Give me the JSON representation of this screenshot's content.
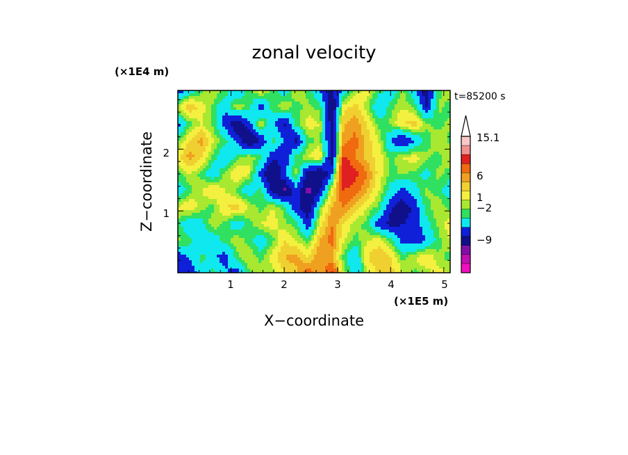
{
  "chart_data": {
    "type": "heatmap",
    "title": "zonal velocity",
    "xlabel": "X−coordinate",
    "ylabel": "Z−coordinate",
    "x_unit": "(×1E5 m)",
    "y_unit": "(×1E4 m)",
    "time_label": "t=85200 s",
    "xlim": [
      0,
      5.12
    ],
    "ylim": [
      0,
      2.95
    ],
    "x_ticks": [
      "1",
      "2",
      "3",
      "4",
      "5"
    ],
    "y_ticks": [
      "1",
      "2"
    ],
    "colorbar": {
      "labels": [
        "15.1",
        "6",
        "1",
        "−2",
        "−9"
      ],
      "levels": [
        {
          "color": "#f8c8c8"
        },
        {
          "color": "#f09090"
        },
        {
          "color": "#e02020"
        },
        {
          "color": "#f06a10"
        },
        {
          "color": "#f0a020"
        },
        {
          "color": "#f0d030"
        },
        {
          "color": "#f4f040"
        },
        {
          "color": "#a8e830"
        },
        {
          "color": "#30e060"
        },
        {
          "color": "#10e8f0"
        },
        {
          "color": "#1020d8"
        },
        {
          "color": "#10108a"
        },
        {
          "color": "#8010a8"
        },
        {
          "color": "#c010b0"
        },
        {
          "color": "#f010c0"
        }
      ],
      "top_triangle_color": "#ffffff"
    },
    "field_values": [
      [
        -2.5,
        -1.0,
        0.5,
        1.5,
        0.5,
        -1.5,
        0.5,
        2.0,
        0.5,
        -1.0,
        1.5,
        0.5,
        -1.5,
        -3.5,
        -1.0,
        1.0,
        2.0,
        0.5,
        -1.0,
        1.0,
        -1.0,
        -4.0,
        0.5,
        1.5
      ],
      [
        1.5,
        3.5,
        2.0,
        0.5,
        -1.0,
        1.5,
        0.5,
        -2.5,
        0.5,
        1.5,
        0.5,
        1.0,
        0.5,
        -5.0,
        2.0,
        3.0,
        1.0,
        -1.5,
        0.5,
        1.5,
        0.5,
        -3.0,
        1.0,
        0.5
      ],
      [
        -2.0,
        0.5,
        1.5,
        0.5,
        -2.5,
        -4.5,
        -2.0,
        1.5,
        -1.0,
        -3.5,
        0.5,
        2.0,
        1.5,
        -4.0,
        3.5,
        4.0,
        2.5,
        0.5,
        1.0,
        2.5,
        3.0,
        1.0,
        0.5,
        1.0
      ],
      [
        0.5,
        2.5,
        4.0,
        1.5,
        0.5,
        -2.0,
        -5.0,
        -3.0,
        0.5,
        -1.5,
        -3.5,
        0.5,
        1.0,
        -3.5,
        4.0,
        5.0,
        3.0,
        1.5,
        -1.5,
        -3.5,
        -1.5,
        0.5,
        1.5,
        0.5
      ],
      [
        2.0,
        4.0,
        2.5,
        0.5,
        -1.5,
        0.5,
        1.5,
        0.5,
        -2.5,
        -3.0,
        0.5,
        1.5,
        2.5,
        -4.5,
        6.5,
        4.5,
        3.0,
        2.0,
        0.5,
        1.5,
        2.0,
        1.0,
        0.5,
        1.5
      ],
      [
        0.5,
        1.5,
        0.5,
        -1.0,
        1.0,
        2.5,
        1.5,
        -2.0,
        -5.5,
        -1.5,
        1.0,
        -4.0,
        -5.0,
        -2.0,
        8.0,
        6.5,
        4.5,
        2.0,
        0.5,
        1.0,
        0.5,
        -0.5,
        1.0,
        0.5
      ],
      [
        -1.0,
        0.5,
        1.5,
        2.5,
        1.5,
        0.5,
        -1.0,
        0.5,
        -3.5,
        -5.5,
        -2.0,
        -5.5,
        -3.0,
        2.0,
        6.0,
        5.0,
        3.5,
        1.5,
        -0.5,
        -2.0,
        -0.5,
        1.0,
        0.5,
        -1.0
      ],
      [
        1.5,
        2.5,
        1.0,
        0.5,
        2.5,
        3.0,
        1.5,
        0.5,
        1.5,
        0.5,
        -2.5,
        -4.5,
        0.5,
        3.5,
        4.5,
        3.0,
        1.5,
        0.5,
        -3.0,
        -4.0,
        -2.5,
        0.5,
        1.5,
        0.5
      ],
      [
        0.5,
        -1.5,
        -0.5,
        1.5,
        0.5,
        -1.0,
        0.5,
        1.5,
        2.0,
        1.0,
        0.5,
        -2.5,
        2.0,
        4.5,
        2.5,
        1.0,
        0.5,
        -2.5,
        -3.5,
        -3.0,
        -2.5,
        -0.5,
        1.0,
        2.0
      ],
      [
        1.0,
        0.5,
        -1.5,
        -1.0,
        0.5,
        1.5,
        0.5,
        -1.0,
        0.5,
        2.5,
        1.5,
        0.5,
        3.5,
        5.0,
        1.5,
        0.5,
        1.5,
        2.0,
        0.5,
        -2.0,
        -2.5,
        -1.5,
        0.5,
        1.5
      ],
      [
        -2.5,
        -1.5,
        0.5,
        -1.0,
        -2.5,
        0.5,
        1.5,
        0.5,
        2.0,
        3.5,
        4.0,
        2.5,
        4.5,
        3.5,
        0.5,
        -1.5,
        2.5,
        3.5,
        2.5,
        0.5,
        1.5,
        2.5,
        1.0,
        0.5
      ],
      [
        -3.0,
        -2.5,
        -1.0,
        0.5,
        -1.0,
        -2.5,
        0.5,
        1.5,
        1.0,
        2.5,
        3.0,
        5.5,
        3.5,
        6.5,
        1.5,
        -1.0,
        1.5,
        2.5,
        3.0,
        1.5,
        0.5,
        1.0,
        2.0,
        1.5
      ]
    ]
  }
}
